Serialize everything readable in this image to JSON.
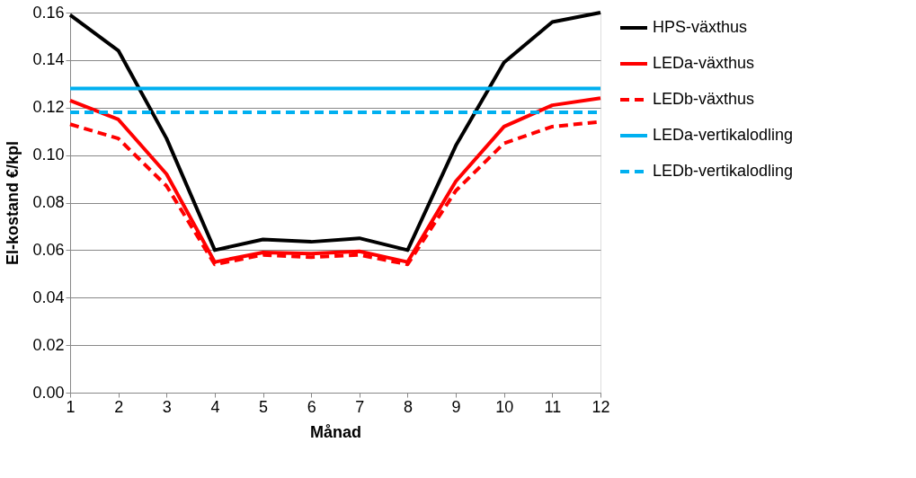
{
  "chart_data": {
    "type": "line",
    "xlabel": "Månad",
    "ylabel": "El-kostand €/kpl",
    "x": [
      1,
      2,
      3,
      4,
      5,
      6,
      7,
      8,
      9,
      10,
      11,
      12
    ],
    "xlim": [
      1,
      12
    ],
    "xticks": [
      1,
      2,
      3,
      4,
      5,
      6,
      7,
      8,
      9,
      10,
      11,
      12
    ],
    "ylim": [
      0,
      0.16
    ],
    "yticks": [
      {
        "value": 0,
        "label": "0.00"
      },
      {
        "value": 0.02,
        "label": "0.02"
      },
      {
        "value": 0.04,
        "label": "0.04"
      },
      {
        "value": 0.06,
        "label": "0.06"
      },
      {
        "value": 0.08,
        "label": "0.08"
      },
      {
        "value": 0.1,
        "label": "0.10"
      },
      {
        "value": 0.12,
        "label": "0.12"
      },
      {
        "value": 0.14,
        "label": "0.14"
      },
      {
        "value": 0.16,
        "label": "0.16"
      }
    ],
    "grid": "y",
    "legend": "right",
    "marker": "none",
    "series": [
      {
        "name": "HPS-växthus",
        "color": "#000000",
        "line_style": "solid",
        "values": [
          0.159,
          0.144,
          0.107,
          0.06,
          0.0645,
          0.0635,
          0.065,
          0.06,
          0.104,
          0.139,
          0.156,
          0.16
        ]
      },
      {
        "name": "LEDa-växthus",
        "color": "#ff0000",
        "line_style": "solid",
        "values": [
          0.123,
          0.115,
          0.092,
          0.055,
          0.059,
          0.0585,
          0.0595,
          0.055,
          0.089,
          0.112,
          0.121,
          0.124
        ]
      },
      {
        "name": "LEDb-växthus",
        "color": "#ff0000",
        "line_style": "dashed",
        "values": [
          0.113,
          0.107,
          0.087,
          0.054,
          0.058,
          0.057,
          0.058,
          0.054,
          0.085,
          0.105,
          0.112,
          0.114
        ]
      },
      {
        "name": "LEDa-vertikalodling",
        "color": "#00b0f0",
        "line_style": "solid",
        "values": [
          0.128,
          0.128,
          0.128,
          0.128,
          0.128,
          0.128,
          0.128,
          0.128,
          0.128,
          0.128,
          0.128,
          0.128
        ]
      },
      {
        "name": "LEDb-vertikalodling",
        "color": "#00b0f0",
        "line_style": "dashed",
        "values": [
          0.118,
          0.118,
          0.118,
          0.118,
          0.118,
          0.118,
          0.118,
          0.118,
          0.118,
          0.118,
          0.118,
          0.118
        ]
      }
    ]
  }
}
